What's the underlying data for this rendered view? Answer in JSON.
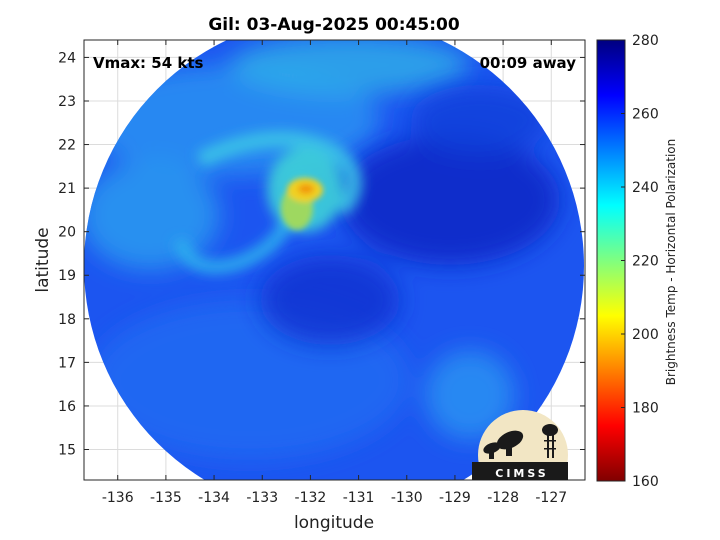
{
  "chart_data": {
    "type": "heatmap",
    "title": "Gil: 03-Aug-2025 00:45:00",
    "xlabel": "longitude",
    "ylabel": "latitude",
    "xlim": [
      -136.7,
      -126.3
    ],
    "ylim": [
      14.3,
      24.4
    ],
    "xticks": [
      -136,
      -135,
      -134,
      -133,
      -132,
      -131,
      -130,
      -129,
      -128,
      -127
    ],
    "yticks": [
      15,
      16,
      17,
      18,
      19,
      20,
      21,
      22,
      23,
      24
    ],
    "grid": true,
    "annotations": {
      "left": "Vmax: 54 kts",
      "right": "00:09 away"
    },
    "colorbar": {
      "label": "Brightness Temp - Horizontal Polarization",
      "range": [
        160,
        280
      ],
      "ticks": [
        160,
        180,
        200,
        220,
        240,
        260,
        280
      ],
      "colormap": "jet"
    },
    "features": [
      {
        "name": "warm core",
        "lon": -131.9,
        "lat": 20.85,
        "value": 205
      },
      {
        "name": "inner band",
        "lon": -132.2,
        "lat": 20.3,
        "value": 228
      },
      {
        "name": "northern band",
        "lon": -133.0,
        "lat": 22.3,
        "value": 245
      },
      {
        "name": "western band",
        "lon": -135.0,
        "lat": 20.7,
        "value": 248
      },
      {
        "name": "southeast band",
        "lon": -128.5,
        "lat": 16.0,
        "value": 250
      },
      {
        "name": "background",
        "value": 262
      },
      {
        "name": "cold region",
        "lon": -129.3,
        "lat": 20.2,
        "value": 272
      }
    ]
  },
  "logo": {
    "text": "CIMSS"
  }
}
